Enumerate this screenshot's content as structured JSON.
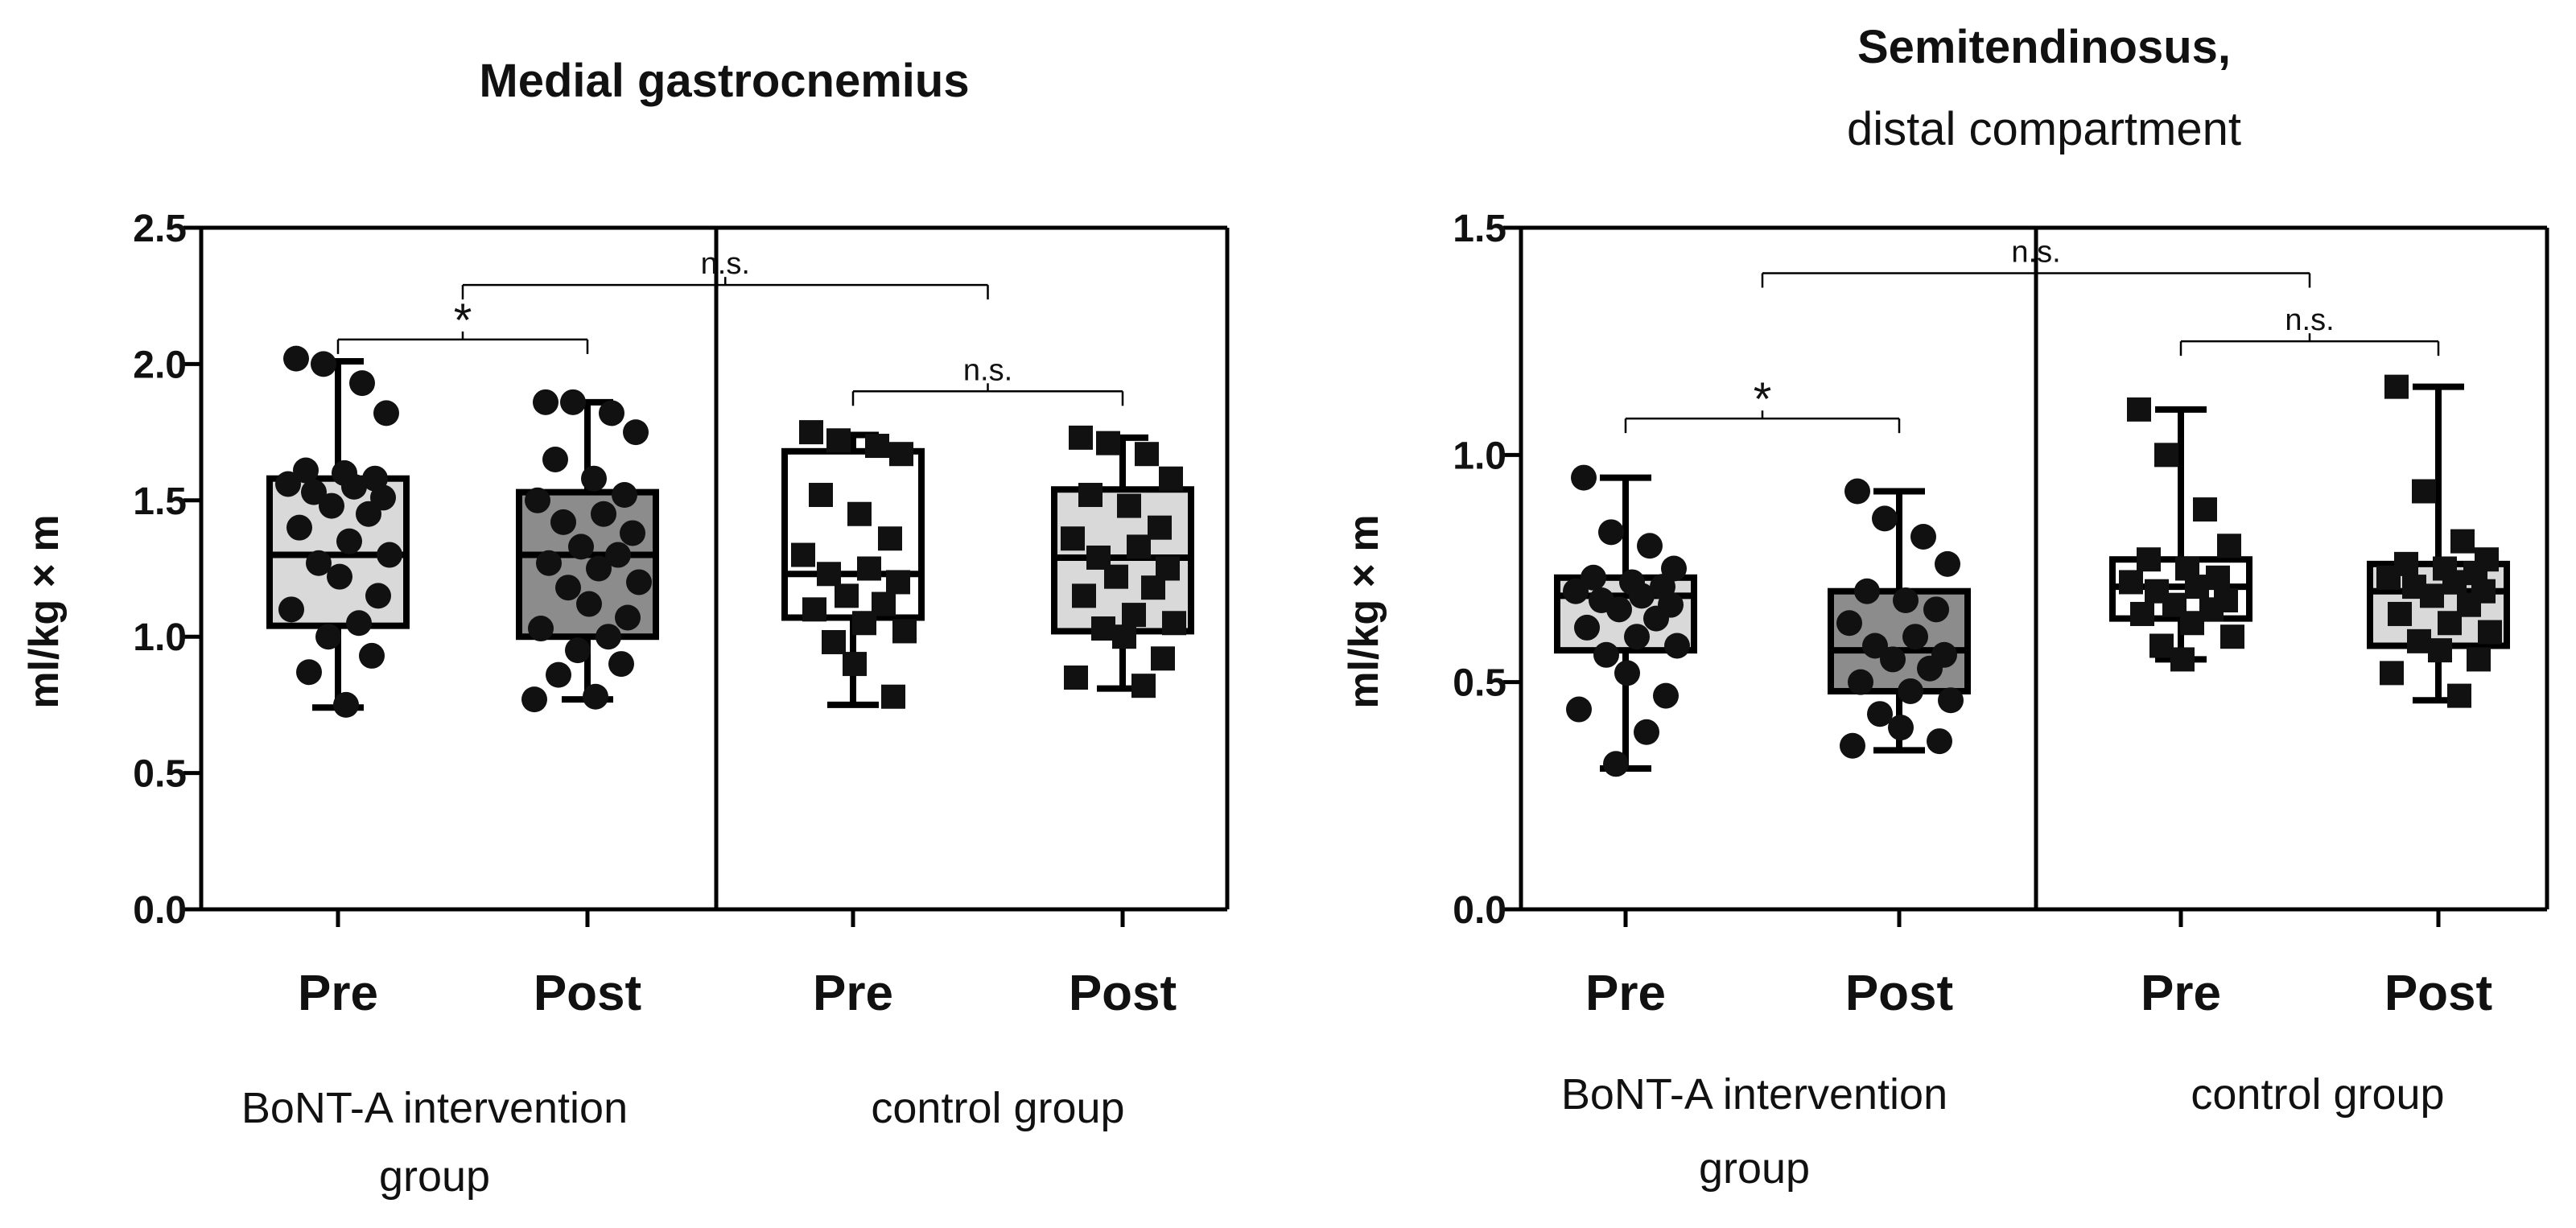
{
  "chart_data": [
    {
      "type": "box",
      "title": "Medial gastrocnemius",
      "subtitle": "",
      "ylabel": "ml/kg × m",
      "ylim": [
        0,
        2.5
      ],
      "yticks": [
        "0.0",
        "0.5",
        "1.0",
        "1.5",
        "2.0",
        "2.5"
      ],
      "categories": [
        "Pre",
        "Post",
        "Pre",
        "Post"
      ],
      "groups": [
        {
          "label": "BoNT-A intervention group",
          "members": [
            0,
            1
          ]
        },
        {
          "label": "control group",
          "members": [
            2,
            3
          ]
        }
      ],
      "boxes": [
        {
          "category": "Pre",
          "group": "BoNT-A intervention group",
          "fill": "#d9d9d9",
          "marker": "circle",
          "min": 0.74,
          "q1": 1.04,
          "median": 1.3,
          "q3": 1.58,
          "max": 2.01,
          "points": [
            2.02,
            2.0,
            1.93,
            1.82,
            1.61,
            1.6,
            1.58,
            1.56,
            1.55,
            1.53,
            1.51,
            1.48,
            1.45,
            1.4,
            1.35,
            1.3,
            1.27,
            1.22,
            1.15,
            1.1,
            1.05,
            1.0,
            0.93,
            0.87,
            0.75
          ]
        },
        {
          "category": "Post",
          "group": "BoNT-A intervention group",
          "fill": "#8c8c8c",
          "marker": "circle",
          "min": 0.77,
          "q1": 1.0,
          "median": 1.3,
          "q3": 1.53,
          "max": 1.86,
          "points": [
            1.86,
            1.86,
            1.82,
            1.75,
            1.65,
            1.58,
            1.52,
            1.5,
            1.45,
            1.42,
            1.38,
            1.33,
            1.3,
            1.27,
            1.25,
            1.2,
            1.18,
            1.12,
            1.07,
            1.03,
            1.0,
            0.95,
            0.9,
            0.86,
            0.78,
            0.77
          ]
        },
        {
          "category": "Pre",
          "group": "control group",
          "fill": "#ffffff",
          "marker": "square",
          "min": 0.75,
          "q1": 1.07,
          "median": 1.23,
          "q3": 1.68,
          "max": 1.74,
          "points": [
            1.75,
            1.72,
            1.7,
            1.67,
            1.52,
            1.45,
            1.36,
            1.3,
            1.25,
            1.23,
            1.2,
            1.15,
            1.12,
            1.1,
            1.05,
            1.02,
            0.98,
            0.9,
            0.78
          ]
        },
        {
          "category": "Post",
          "group": "control group",
          "fill": "#d9d9d9",
          "marker": "square",
          "min": 0.81,
          "q1": 1.02,
          "median": 1.29,
          "q3": 1.54,
          "max": 1.73,
          "points": [
            1.73,
            1.71,
            1.67,
            1.58,
            1.52,
            1.48,
            1.4,
            1.36,
            1.33,
            1.29,
            1.25,
            1.22,
            1.18,
            1.15,
            1.08,
            1.05,
            1.03,
            1.0,
            0.92,
            0.85,
            0.82
          ]
        }
      ],
      "annotations": [
        {
          "from": 0,
          "to": 1,
          "y": 2.09,
          "label": "*"
        },
        {
          "from": 0.5,
          "to": 2.5,
          "y": 2.29,
          "label": "n.s."
        },
        {
          "from": 2,
          "to": 3,
          "y": 1.9,
          "label": "n.s."
        }
      ]
    },
    {
      "type": "box",
      "title": "Semitendinosus,",
      "subtitle": "distal compartment",
      "ylabel": "ml/kg × m",
      "ylim": [
        0,
        1.5
      ],
      "yticks": [
        "0.0",
        "0.5",
        "1.0",
        "1.5"
      ],
      "categories": [
        "Pre",
        "Post",
        "Pre",
        "Post"
      ],
      "groups": [
        {
          "label": "BoNT-A intervention group",
          "members": [
            0,
            1
          ]
        },
        {
          "label": "control group",
          "members": [
            2,
            3
          ]
        }
      ],
      "boxes": [
        {
          "category": "Pre",
          "group": "BoNT-A intervention group",
          "fill": "#d9d9d9",
          "marker": "circle",
          "min": 0.31,
          "q1": 0.57,
          "median": 0.69,
          "q3": 0.73,
          "max": 0.95,
          "points": [
            0.95,
            0.83,
            0.8,
            0.75,
            0.73,
            0.72,
            0.71,
            0.7,
            0.69,
            0.68,
            0.67,
            0.66,
            0.64,
            0.62,
            0.6,
            0.58,
            0.56,
            0.52,
            0.47,
            0.44,
            0.39,
            0.32
          ]
        },
        {
          "category": "Post",
          "group": "BoNT-A intervention group",
          "fill": "#8c8c8c",
          "marker": "circle",
          "min": 0.35,
          "q1": 0.48,
          "median": 0.57,
          "q3": 0.7,
          "max": 0.92,
          "points": [
            0.92,
            0.86,
            0.82,
            0.76,
            0.7,
            0.68,
            0.66,
            0.63,
            0.6,
            0.58,
            0.56,
            0.55,
            0.53,
            0.5,
            0.48,
            0.46,
            0.43,
            0.4,
            0.37,
            0.36
          ]
        },
        {
          "category": "Pre",
          "group": "control group",
          "fill": "#ffffff",
          "marker": "square",
          "min": 0.55,
          "q1": 0.64,
          "median": 0.71,
          "q3": 0.77,
          "max": 1.1,
          "points": [
            1.1,
            1.0,
            0.88,
            0.8,
            0.77,
            0.75,
            0.73,
            0.72,
            0.71,
            0.7,
            0.68,
            0.67,
            0.66,
            0.65,
            0.63,
            0.6,
            0.58,
            0.55
          ]
        },
        {
          "category": "Post",
          "group": "control group",
          "fill": "#d9d9d9",
          "marker": "square",
          "min": 0.46,
          "q1": 0.58,
          "median": 0.7,
          "q3": 0.76,
          "max": 1.15,
          "points": [
            1.15,
            0.92,
            0.81,
            0.77,
            0.76,
            0.75,
            0.74,
            0.73,
            0.72,
            0.71,
            0.7,
            0.69,
            0.67,
            0.65,
            0.63,
            0.61,
            0.59,
            0.57,
            0.55,
            0.52,
            0.47
          ]
        }
      ],
      "annotations": [
        {
          "from": 0,
          "to": 1,
          "y": 1.08,
          "label": "*"
        },
        {
          "from": 0.5,
          "to": 2.5,
          "y": 1.4,
          "label": "n.s."
        },
        {
          "from": 2,
          "to": 3,
          "y": 1.25,
          "label": "n.s."
        }
      ]
    }
  ]
}
